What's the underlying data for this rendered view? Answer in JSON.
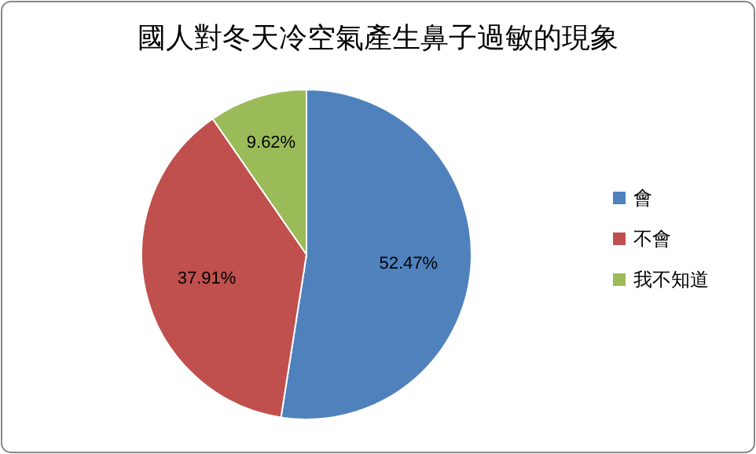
{
  "chart_data": {
    "type": "pie",
    "title": "國人對冬天冷空氣產生鼻子過敏的現象",
    "categories": [
      "會",
      "不會",
      "我不知道"
    ],
    "values": [
      52.47,
      37.91,
      9.62
    ],
    "colors": [
      "#4f81bd",
      "#c0504d",
      "#9bbb59"
    ],
    "value_labels": [
      "52.47%",
      "37.91%",
      "9.62%"
    ],
    "legend": "right"
  }
}
